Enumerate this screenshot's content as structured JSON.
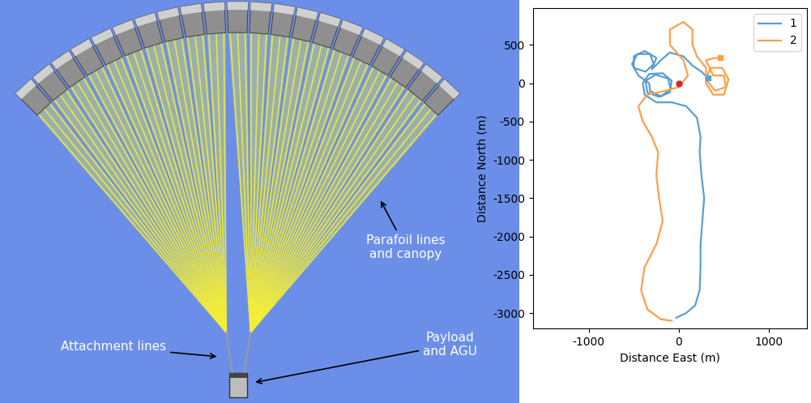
{
  "diagram": {
    "annotations": [
      "Parafoil lines\nand canopy",
      "Attachment lines",
      "Payload\nand AGU"
    ]
  },
  "chart_data": {
    "type": "line",
    "xlabel": "Distance East (m)",
    "ylabel": "Distance North (m)",
    "xlim": [
      -1620,
      1420
    ],
    "ylim": [
      -3200,
      980
    ],
    "xticks": [
      -1000,
      0,
      1000
    ],
    "yticks": [
      -3000,
      -2500,
      -2000,
      -1500,
      -1000,
      -500,
      0,
      500
    ],
    "legend": "upper right",
    "series": [
      {
        "name": "1",
        "color": "#5b9fd0",
        "x": [
          -30,
          80,
          180,
          230,
          240,
          240,
          260,
          280,
          250,
          230,
          240,
          200,
          80,
          -80,
          -250,
          -380,
          -400,
          -330,
          -180,
          -80,
          -100,
          -220,
          -350,
          -370,
          -260,
          -120,
          -90,
          -200,
          -320,
          -330,
          -450,
          -520,
          -460,
          -320,
          -280,
          -370,
          -500,
          -500,
          -380,
          -250,
          -300,
          -200,
          -100,
          50,
          150,
          250,
          320
        ],
        "values": [
          -3060,
          -3000,
          -2900,
          -2700,
          -2400,
          -2100,
          -1800,
          -1500,
          -1200,
          -900,
          -700,
          -450,
          -300,
          -250,
          -250,
          -150,
          0,
          120,
          130,
          30,
          -120,
          -180,
          -120,
          30,
          110,
          60,
          -80,
          -170,
          -100,
          0,
          100,
          250,
          380,
          380,
          250,
          150,
          200,
          350,
          420,
          330,
          180,
          300,
          400,
          350,
          230,
          150,
          70
        ]
      },
      {
        "name": "2",
        "color": "#ff9f4a",
        "x": [
          -80,
          -200,
          -350,
          -420,
          -380,
          -250,
          -180,
          -220,
          -250,
          -230,
          -300,
          -400,
          -450,
          -350,
          -150,
          0,
          100,
          50,
          -100,
          -100,
          50,
          150,
          150,
          200,
          300,
          300,
          380,
          500,
          550,
          480,
          350,
          300,
          400,
          520,
          500,
          380,
          300,
          400,
          460
        ],
        "values": [
          -3100,
          -3080,
          -2950,
          -2700,
          -2400,
          -2100,
          -1800,
          -1500,
          -1200,
          -900,
          -700,
          -500,
          -300,
          -150,
          -100,
          -50,
          100,
          300,
          500,
          700,
          800,
          700,
          500,
          350,
          200,
          0,
          -150,
          -150,
          50,
          200,
          200,
          50,
          -100,
          -50,
          100,
          100,
          300,
          330,
          330
        ]
      },
      {
        "color": "#d62728",
        "marker": "o",
        "line_style": "none",
        "x": [
          0
        ],
        "values": [
          0
        ]
      },
      {
        "color": "#5b9fd0",
        "marker": "s",
        "line_style": "none",
        "x": [
          320
        ],
        "values": [
          70
        ]
      },
      {
        "color": "#ff9f4a",
        "marker": "s",
        "line_style": "none",
        "x": [
          460
        ],
        "values": [
          330
        ]
      }
    ]
  }
}
